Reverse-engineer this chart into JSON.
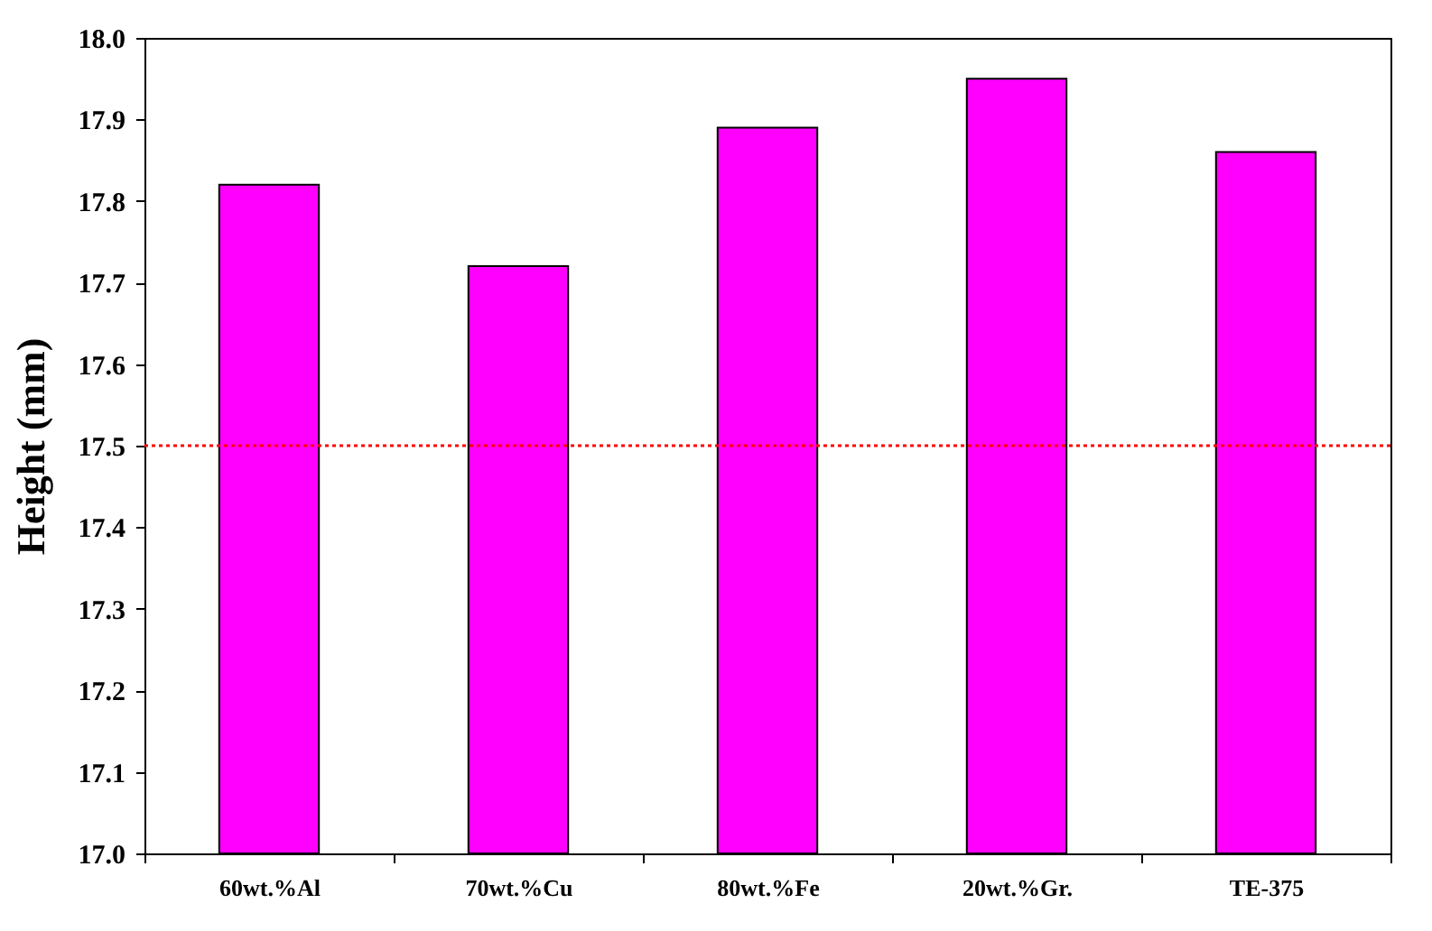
{
  "chart_data": {
    "type": "bar",
    "ylabel": "Height (mm)",
    "categories": [
      "60wt.%Al",
      "70wt.%Cu",
      "80wt.%Fe",
      "20wt.%Gr.",
      "TE-375"
    ],
    "values": [
      17.82,
      17.72,
      17.89,
      17.95,
      17.86
    ],
    "color": "#ff00ff",
    "ylim": [
      17,
      18
    ],
    "yticks": [
      {
        "value": 17,
        "label": "17.0"
      },
      17.1,
      17.2,
      17.3,
      17.4,
      17.5,
      17.6,
      17.7,
      17.8,
      17.9,
      {
        "value": 18,
        "label": "18.0"
      }
    ],
    "ref_lines": [
      {
        "axis": "y",
        "value": 17.5,
        "color": "#ff0000",
        "line_style": "dotted"
      }
    ],
    "grid": false
  }
}
